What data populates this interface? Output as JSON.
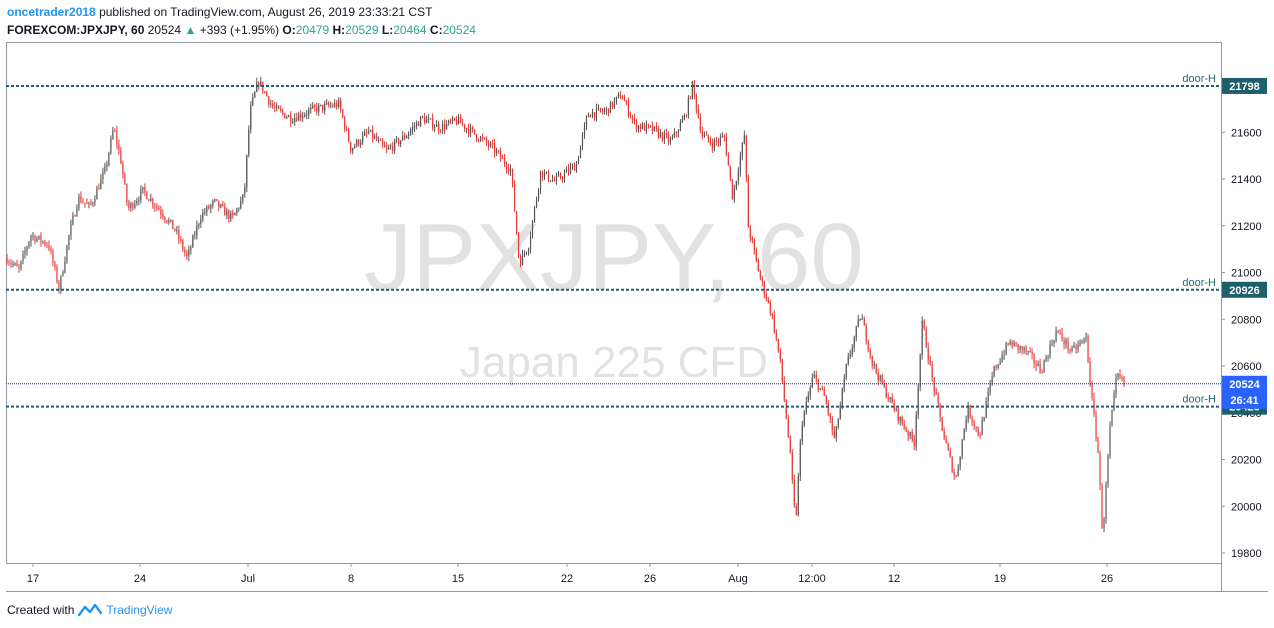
{
  "header": {
    "author": "oncetrader2018",
    "published_text": "published on TradingView.com, August 26, 2019 23:33:21 CST",
    "symbol": "FOREXCOM:JPXJPY, 60",
    "last": "20524",
    "arrow": "▲",
    "change": "+393 (+1.95%)",
    "o_label": "O:",
    "o_value": "20479",
    "h_label": "H:",
    "h_value": "20529",
    "l_label": "L:",
    "l_value": "20464",
    "c_label": "C:",
    "c_value": "20524"
  },
  "watermark": {
    "symbol": "JPXJPY, 60",
    "name": "Japan 225 CFD"
  },
  "footer": {
    "created_with": "Created with",
    "brand": "TradingView"
  },
  "colors": {
    "level_line": "#1f5f6b",
    "level_tag": "#1f5f6b",
    "price_line": "#1a237e",
    "price_tag": "#2962ff",
    "candle_up": "#555555",
    "candle_down": "#e53935"
  },
  "chart_data": {
    "type": "candlestick",
    "y_ticks": [
      19800,
      20000,
      20200,
      20400,
      20600,
      20800,
      21000,
      21200,
      21400,
      21600
    ],
    "ylim": [
      19730,
      21900
    ],
    "x_ticks": [
      "17",
      "24",
      "Jul",
      "8",
      "15",
      "22",
      "26",
      "Aug",
      "12:00",
      "12",
      "19",
      "26"
    ],
    "levels": [
      {
        "label": "door-H",
        "value": 21798
      },
      {
        "label": "door-H",
        "value": 20926
      },
      {
        "label": "door-H",
        "value": 20426
      }
    ],
    "last_price": {
      "value": 20524,
      "countdown": "26:41"
    },
    "price_path": [
      {
        "x": 0.0,
        "y": 21060
      },
      {
        "x": 0.01,
        "y": 21010
      },
      {
        "x": 0.02,
        "y": 21160
      },
      {
        "x": 0.035,
        "y": 21120
      },
      {
        "x": 0.044,
        "y": 20930
      },
      {
        "x": 0.052,
        "y": 21150
      },
      {
        "x": 0.06,
        "y": 21320
      },
      {
        "x": 0.07,
        "y": 21280
      },
      {
        "x": 0.083,
        "y": 21440
      },
      {
        "x": 0.09,
        "y": 21620
      },
      {
        "x": 0.096,
        "y": 21480
      },
      {
        "x": 0.102,
        "y": 21270
      },
      {
        "x": 0.115,
        "y": 21350
      },
      {
        "x": 0.13,
        "y": 21260
      },
      {
        "x": 0.142,
        "y": 21180
      },
      {
        "x": 0.152,
        "y": 21060
      },
      {
        "x": 0.163,
        "y": 21240
      },
      {
        "x": 0.175,
        "y": 21300
      },
      {
        "x": 0.19,
        "y": 21230
      },
      {
        "x": 0.2,
        "y": 21330
      },
      {
        "x": 0.205,
        "y": 21690
      },
      {
        "x": 0.212,
        "y": 21820
      },
      {
        "x": 0.225,
        "y": 21700
      },
      {
        "x": 0.24,
        "y": 21660
      },
      {
        "x": 0.26,
        "y": 21700
      },
      {
        "x": 0.28,
        "y": 21720
      },
      {
        "x": 0.29,
        "y": 21530
      },
      {
        "x": 0.305,
        "y": 21600
      },
      {
        "x": 0.32,
        "y": 21520
      },
      {
        "x": 0.335,
        "y": 21580
      },
      {
        "x": 0.35,
        "y": 21660
      },
      {
        "x": 0.365,
        "y": 21620
      },
      {
        "x": 0.38,
        "y": 21650
      },
      {
        "x": 0.395,
        "y": 21590
      },
      {
        "x": 0.41,
        "y": 21530
      },
      {
        "x": 0.425,
        "y": 21440
      },
      {
        "x": 0.432,
        "y": 21040
      },
      {
        "x": 0.44,
        "y": 21120
      },
      {
        "x": 0.45,
        "y": 21430
      },
      {
        "x": 0.462,
        "y": 21390
      },
      {
        "x": 0.48,
        "y": 21460
      },
      {
        "x": 0.49,
        "y": 21680
      },
      {
        "x": 0.505,
        "y": 21690
      },
      {
        "x": 0.518,
        "y": 21760
      },
      {
        "x": 0.53,
        "y": 21630
      },
      {
        "x": 0.545,
        "y": 21610
      },
      {
        "x": 0.56,
        "y": 21560
      },
      {
        "x": 0.572,
        "y": 21670
      },
      {
        "x": 0.578,
        "y": 21800
      },
      {
        "x": 0.586,
        "y": 21590
      },
      {
        "x": 0.595,
        "y": 21550
      },
      {
        "x": 0.605,
        "y": 21580
      },
      {
        "x": 0.612,
        "y": 21320
      },
      {
        "x": 0.622,
        "y": 21590
      },
      {
        "x": 0.625,
        "y": 21200
      },
      {
        "x": 0.635,
        "y": 20980
      },
      {
        "x": 0.645,
        "y": 20820
      },
      {
        "x": 0.652,
        "y": 20620
      },
      {
        "x": 0.66,
        "y": 20250
      },
      {
        "x": 0.665,
        "y": 19920
      },
      {
        "x": 0.67,
        "y": 20350
      },
      {
        "x": 0.68,
        "y": 20560
      },
      {
        "x": 0.69,
        "y": 20460
      },
      {
        "x": 0.698,
        "y": 20280
      },
      {
        "x": 0.708,
        "y": 20600
      },
      {
        "x": 0.72,
        "y": 20820
      },
      {
        "x": 0.73,
        "y": 20610
      },
      {
        "x": 0.74,
        "y": 20500
      },
      {
        "x": 0.752,
        "y": 20380
      },
      {
        "x": 0.765,
        "y": 20270
      },
      {
        "x": 0.772,
        "y": 20790
      },
      {
        "x": 0.78,
        "y": 20550
      },
      {
        "x": 0.79,
        "y": 20300
      },
      {
        "x": 0.8,
        "y": 20110
      },
      {
        "x": 0.81,
        "y": 20420
      },
      {
        "x": 0.82,
        "y": 20300
      },
      {
        "x": 0.832,
        "y": 20580
      },
      {
        "x": 0.845,
        "y": 20700
      },
      {
        "x": 0.86,
        "y": 20660
      },
      {
        "x": 0.872,
        "y": 20580
      },
      {
        "x": 0.885,
        "y": 20750
      },
      {
        "x": 0.898,
        "y": 20660
      },
      {
        "x": 0.91,
        "y": 20720
      },
      {
        "x": 0.915,
        "y": 20450
      },
      {
        "x": 0.92,
        "y": 20240
      },
      {
        "x": 0.924,
        "y": 19870
      },
      {
        "x": 0.93,
        "y": 20320
      },
      {
        "x": 0.936,
        "y": 20560
      },
      {
        "x": 0.942,
        "y": 20524
      }
    ]
  }
}
